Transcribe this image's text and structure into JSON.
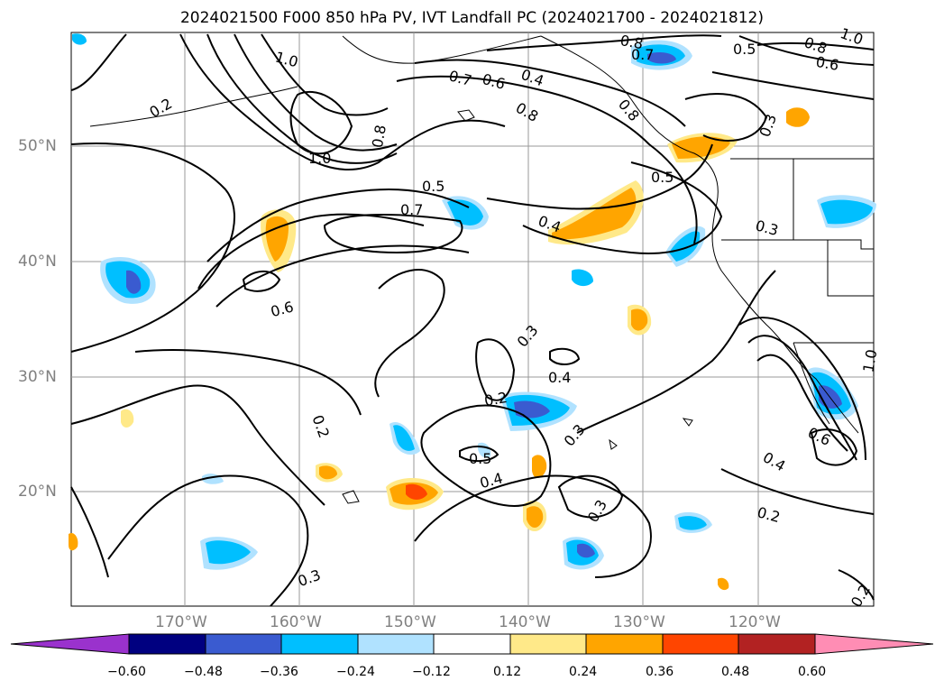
{
  "title": "2024021500 F000 850 hPa PV, IVT Landfall PC (2024021700 - 2024021812)",
  "lat_labels": [
    "50°N",
    "40°N",
    "30°N",
    "20°N"
  ],
  "lon_labels": [
    "170°W",
    "160°W",
    "150°W",
    "140°W",
    "130°W",
    "120°W"
  ],
  "contour_labels": [
    "1.0",
    "0.2",
    "0.8",
    "0.7",
    "0.6",
    "0.4",
    "0.8",
    "0.8",
    "0.7",
    "0.5",
    "0.8",
    "0.6",
    "1.0",
    "1.0",
    "0.8",
    "0.3",
    "0.5",
    "0.7",
    "0.5",
    "0.4",
    "0.3",
    "0.6",
    "0.3",
    "0.4",
    "0.2",
    "0.3",
    "0.2",
    "0.5",
    "0.4",
    "0.3",
    "0.6",
    "0.4",
    "0.2",
    "0.3",
    "0.2",
    "1.0"
  ],
  "colorbar": {
    "ticks": [
      "−0.60",
      "−0.48",
      "−0.36",
      "−0.24",
      "−0.12",
      "0.12",
      "0.24",
      "0.36",
      "0.48",
      "0.60"
    ],
    "colors": [
      "#9a32cd",
      "#000080",
      "#3a5bd0",
      "#00bfff",
      "#b0e2ff",
      "#ffffff",
      "#ffe989",
      "#ffa500",
      "#ff4500",
      "#b22222",
      "#ff8db4"
    ]
  }
}
